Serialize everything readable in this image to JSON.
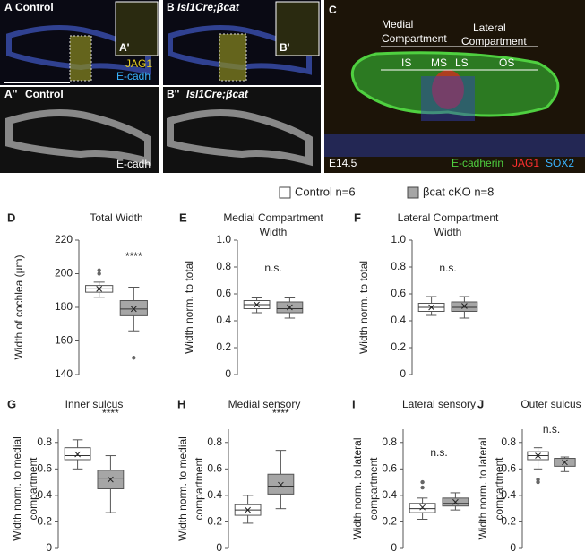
{
  "images": {
    "a": {
      "panel": "A",
      "title": "Control",
      "inset": "A'",
      "stain1": "JAG1",
      "stain2": "E-cadh"
    },
    "a2": {
      "panel": "A''",
      "title": "Control",
      "stain": "E-cadh"
    },
    "b": {
      "panel": "B",
      "title": "Isl1Cre;βcat",
      "inset": "B'"
    },
    "b2": {
      "panel": "B''",
      "title": "Isl1Cre;βcat"
    },
    "c": {
      "panel": "C",
      "medial": [
        "Medial",
        "Compartment"
      ],
      "lateral": [
        "Lateral",
        "Compartment"
      ],
      "regions": [
        "IS",
        "MS",
        "LS",
        "OS"
      ],
      "age": "E14.5",
      "stains": [
        "E-cadherin",
        "JAG1",
        "SOX2"
      ]
    }
  },
  "legend": [
    {
      "name": "Control n=6",
      "color": "#ffffff"
    },
    {
      "name": "βcat cKO n=8",
      "color": "#a6a6a6"
    }
  ],
  "chart_data": [
    {
      "type": "box",
      "panel": "D",
      "title": [
        "Total Width"
      ],
      "ylabel": [
        "Width of cochlea (µm)"
      ],
      "annotation": "****",
      "ylim": [
        140,
        220
      ],
      "yticks": [
        140,
        160,
        180,
        200,
        220
      ],
      "boxes": [
        {
          "color": "#ffffff",
          "min": 186,
          "q1": 189,
          "median": 191,
          "q3": 193,
          "max": 195,
          "mean": 191,
          "outliers": [
            200,
            202
          ]
        },
        {
          "color": "#a6a6a6",
          "min": 166,
          "q1": 175,
          "median": 179,
          "q3": 184,
          "max": 192,
          "mean": 179,
          "outliers": [
            150
          ]
        }
      ]
    },
    {
      "type": "box",
      "panel": "E",
      "title": [
        "Medial Compartment",
        "Width"
      ],
      "ylabel": [
        "Width norm. to total"
      ],
      "annotation": "n.s.",
      "ylim": [
        0,
        1
      ],
      "yticks": [
        0,
        0.2,
        0.4,
        0.6,
        0.8,
        {
          "value": 1,
          "label": "1.0"
        }
      ],
      "boxes": [
        {
          "color": "#ffffff",
          "min": 0.46,
          "q1": 0.49,
          "median": 0.52,
          "q3": 0.55,
          "max": 0.57,
          "mean": 0.52,
          "outliers": []
        },
        {
          "color": "#a6a6a6",
          "min": 0.42,
          "q1": 0.46,
          "median": 0.49,
          "q3": 0.54,
          "max": 0.57,
          "mean": 0.5,
          "outliers": []
        }
      ]
    },
    {
      "type": "box",
      "panel": "F",
      "title": [
        "Lateral Compartment",
        "Width"
      ],
      "ylabel": [
        "Width norm. to total"
      ],
      "annotation": "n.s.",
      "ylim": [
        0,
        1
      ],
      "yticks": [
        0,
        0.2,
        0.4,
        0.6,
        0.8,
        {
          "value": 1,
          "label": "1.0"
        }
      ],
      "boxes": [
        {
          "color": "#ffffff",
          "min": 0.44,
          "q1": 0.47,
          "median": 0.5,
          "q3": 0.53,
          "max": 0.58,
          "mean": 0.5,
          "outliers": []
        },
        {
          "color": "#a6a6a6",
          "min": 0.42,
          "q1": 0.47,
          "median": 0.5,
          "q3": 0.54,
          "max": 0.58,
          "mean": 0.51,
          "outliers": []
        }
      ]
    },
    {
      "type": "box",
      "panel": "G",
      "title": [
        "Inner sulcus"
      ],
      "ylabel": [
        "Width norm. to medial",
        "compartment"
      ],
      "annotation": "****",
      "ylim": [
        0,
        0.9
      ],
      "yticks": [
        0,
        0.2,
        0.4,
        0.6,
        0.8
      ],
      "boxes": [
        {
          "color": "#ffffff",
          "min": 0.6,
          "q1": 0.67,
          "median": 0.7,
          "q3": 0.76,
          "max": 0.82,
          "mean": 0.71,
          "outliers": []
        },
        {
          "color": "#a6a6a6",
          "min": 0.27,
          "q1": 0.45,
          "median": 0.53,
          "q3": 0.59,
          "max": 0.7,
          "mean": 0.52,
          "outliers": []
        }
      ]
    },
    {
      "type": "box",
      "panel": "H",
      "title": [
        "Medial sensory"
      ],
      "ylabel": [
        "Width norm. to medial",
        "compartment"
      ],
      "annotation": "****",
      "ylim": [
        0,
        0.9
      ],
      "yticks": [
        0,
        0.2,
        0.4,
        0.6,
        0.8
      ],
      "boxes": [
        {
          "color": "#ffffff",
          "min": 0.19,
          "q1": 0.25,
          "median": 0.29,
          "q3": 0.33,
          "max": 0.4,
          "mean": 0.29,
          "outliers": []
        },
        {
          "color": "#a6a6a6",
          "min": 0.3,
          "q1": 0.41,
          "median": 0.47,
          "q3": 0.56,
          "max": 0.74,
          "mean": 0.48,
          "outliers": []
        }
      ]
    },
    {
      "type": "box",
      "panel": "I",
      "title": [
        "Lateral sensory"
      ],
      "ylabel": [
        "Width norm. to lateral",
        "compartment"
      ],
      "annotation": "n.s.",
      "ylim": [
        0,
        0.9
      ],
      "yticks": [
        0,
        0.2,
        0.4,
        0.6,
        0.8
      ],
      "boxes": [
        {
          "color": "#ffffff",
          "min": 0.22,
          "q1": 0.27,
          "median": 0.3,
          "q3": 0.34,
          "max": 0.38,
          "mean": 0.31,
          "outliers": [
            0.46,
            0.5
          ]
        },
        {
          "color": "#a6a6a6",
          "min": 0.29,
          "q1": 0.32,
          "median": 0.34,
          "q3": 0.38,
          "max": 0.42,
          "mean": 0.35,
          "outliers": []
        }
      ]
    },
    {
      "type": "box",
      "panel": "J",
      "title": [
        "Outer sulcus"
      ],
      "ylabel": [
        "Width norm. to lateral",
        "compartment"
      ],
      "annotation": "n.s.",
      "ylim": [
        0,
        0.9
      ],
      "yticks": [
        0,
        0.2,
        0.4,
        0.6,
        0.8
      ],
      "boxes": [
        {
          "color": "#ffffff",
          "min": 0.6,
          "q1": 0.67,
          "median": 0.7,
          "q3": 0.73,
          "max": 0.76,
          "mean": 0.7,
          "outliers": [
            0.5,
            0.52
          ]
        },
        {
          "color": "#a6a6a6",
          "min": 0.58,
          "q1": 0.62,
          "median": 0.66,
          "q3": 0.68,
          "max": 0.69,
          "mean": 0.65,
          "outliers": []
        }
      ]
    }
  ]
}
